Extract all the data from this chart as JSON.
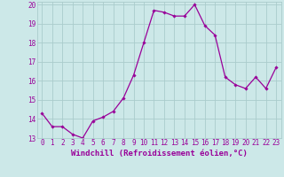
{
  "x": [
    0,
    1,
    2,
    3,
    4,
    5,
    6,
    7,
    8,
    9,
    10,
    11,
    12,
    13,
    14,
    15,
    16,
    17,
    18,
    19,
    20,
    21,
    22,
    23
  ],
  "y": [
    14.3,
    13.6,
    13.6,
    13.2,
    13.0,
    13.9,
    14.1,
    14.4,
    15.1,
    16.3,
    18.0,
    19.7,
    19.6,
    19.4,
    19.4,
    20.0,
    18.9,
    18.4,
    16.2,
    15.8,
    15.6,
    16.2,
    15.6,
    16.7
  ],
  "xlabel": "Windchill (Refroidissement éolien,°C)",
  "ylim": [
    13,
    20
  ],
  "xlim": [
    -0.5,
    23.5
  ],
  "yticks": [
    13,
    14,
    15,
    16,
    17,
    18,
    19,
    20
  ],
  "xticks": [
    0,
    1,
    2,
    3,
    4,
    5,
    6,
    7,
    8,
    9,
    10,
    11,
    12,
    13,
    14,
    15,
    16,
    17,
    18,
    19,
    20,
    21,
    22,
    23
  ],
  "line_color": "#990099",
  "marker": "D",
  "marker_size": 1.8,
  "bg_color": "#cce8e8",
  "grid_color": "#aacccc",
  "xlabel_fontsize": 6.5,
  "tick_fontsize": 5.5
}
